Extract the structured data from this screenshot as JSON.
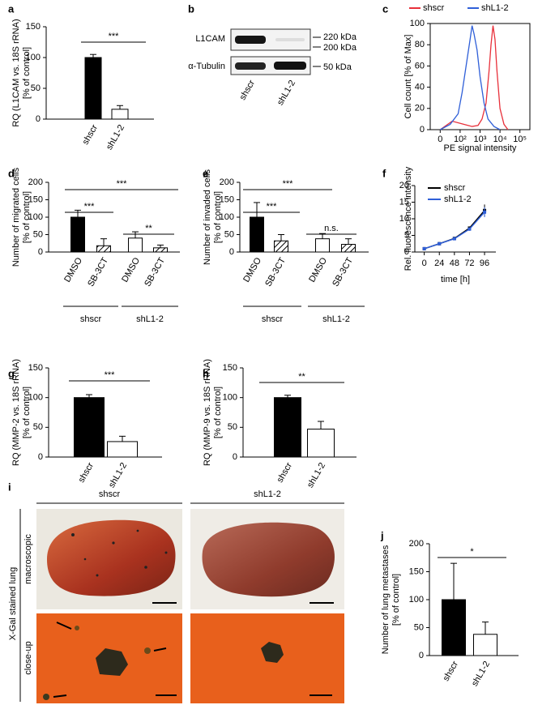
{
  "blot": {
    "label": "b",
    "bands": [
      "L1CAM",
      "α-Tubulin"
    ],
    "markers": [
      "220 kDa",
      "200 kDa",
      "50 kDa"
    ],
    "lanes": [
      "shscr",
      "shL1-2"
    ]
  },
  "photos": {
    "label": "i",
    "columns": [
      "shscr",
      "shL1-2"
    ],
    "side_label": "X-Gal stained lung",
    "rows": [
      "macroscopic",
      "close-up"
    ]
  },
  "chart_data": [
    {
      "type": "bar",
      "label": "a",
      "ylabel": [
        "RQ (L1CAM vs. 18S rRNA)",
        "[% of control]"
      ],
      "categories": [
        "shscr",
        "shL1-2"
      ],
      "values": [
        100,
        16
      ],
      "errors": [
        5,
        6
      ],
      "fills": [
        "#000000",
        "#ffffff"
      ],
      "ylim": [
        0,
        150
      ],
      "yticks": [
        0,
        50,
        100,
        150
      ],
      "annotations": [
        "***"
      ]
    },
    {
      "type": "line",
      "label": "c",
      "xlabel": "PE signal intensity",
      "ylabel": [
        "Cell count [% of Max]"
      ],
      "xlim": [
        0.5,
        5.5
      ],
      "ylim": [
        0,
        100
      ],
      "xticks": [
        {
          "value": 1,
          "label": "0"
        },
        {
          "value": 2,
          "label": "10²"
        },
        {
          "value": 3,
          "label": "10³"
        },
        {
          "value": 4,
          "label": "10⁴"
        },
        {
          "value": 5,
          "label": "10⁵"
        }
      ],
      "yticks": [
        0,
        20,
        40,
        60,
        80,
        100
      ],
      "series": [
        {
          "name": "shscr",
          "color": "#e8303a",
          "x": [
            1.0,
            1.6,
            2.2,
            2.6,
            2.9,
            3.1,
            3.3,
            3.45,
            3.55,
            3.65,
            3.75,
            3.85,
            4.0,
            4.2,
            4.4
          ],
          "values": [
            0,
            8,
            5,
            3,
            4,
            10,
            25,
            55,
            80,
            98,
            85,
            55,
            20,
            5,
            0
          ]
        },
        {
          "name": "shL1-2",
          "color": "#2f5fd8",
          "x": [
            1.0,
            1.5,
            1.9,
            2.1,
            2.3,
            2.5,
            2.6,
            2.7,
            2.85,
            3.0,
            3.2,
            3.4,
            3.7,
            4.0
          ],
          "values": [
            0,
            5,
            15,
            35,
            60,
            85,
            98,
            90,
            75,
            50,
            25,
            10,
            3,
            0
          ]
        }
      ]
    },
    {
      "type": "bar",
      "label": "d",
      "ylabel": [
        "Number of migrated cells",
        "[% of control]"
      ],
      "categories": [
        "DMSO",
        "SB-3CT",
        "DMSO",
        "SB-3CT"
      ],
      "groups": [
        "shscr",
        "shL1-2"
      ],
      "values": [
        100,
        18,
        40,
        12
      ],
      "errors": [
        20,
        20,
        18,
        8
      ],
      "fills": [
        "#000000",
        "hatch",
        "#ffffff",
        "hatch"
      ],
      "ylim": [
        0,
        200
      ],
      "yticks": [
        0,
        50,
        100,
        150,
        200
      ],
      "annotations": [
        "***",
        "***",
        "**"
      ]
    },
    {
      "type": "bar",
      "label": "e",
      "ylabel": [
        "Number of invaded cells",
        "[% of control]"
      ],
      "categories": [
        "DMSO",
        "SB-3CT",
        "DMSO",
        "SB-3CT"
      ],
      "groups": [
        "shscr",
        "shL1-2"
      ],
      "values": [
        100,
        32,
        38,
        22
      ],
      "errors": [
        42,
        18,
        15,
        16
      ],
      "fills": [
        "#000000",
        "hatch",
        "#ffffff",
        "hatch"
      ],
      "ylim": [
        0,
        200
      ],
      "yticks": [
        0,
        50,
        100,
        150,
        200
      ],
      "annotations": [
        "***",
        "***",
        "n.s."
      ]
    },
    {
      "type": "errline",
      "label": "f",
      "xlabel": "time [h]",
      "ylabel": [
        "Rel. fluorescence intensity"
      ],
      "x": [
        0,
        24,
        48,
        72,
        96
      ],
      "xlim": [
        -15,
        114
      ],
      "xticks": [
        0,
        24,
        48,
        72,
        96
      ],
      "ylim": [
        0,
        20
      ],
      "yticks": [
        0,
        5,
        10,
        15,
        20
      ],
      "series": [
        {
          "name": "shscr",
          "color": "#000000",
          "values": [
            1,
            2.5,
            4.1,
            7.2,
            12.5
          ],
          "errors": [
            0.2,
            0.2,
            0.3,
            0.5,
            1.8
          ]
        },
        {
          "name": "shL1-2",
          "color": "#2f5fd8",
          "values": [
            1,
            2.5,
            4.0,
            6.9,
            12.0
          ],
          "errors": [
            0.2,
            0.2,
            0.3,
            0.5,
            1.5
          ]
        }
      ]
    },
    {
      "type": "bar",
      "label": "g",
      "ylabel": [
        "RQ (MMP-2 vs. 18S rRNA)",
        "[% of control]"
      ],
      "categories": [
        "shscr",
        "shL1-2"
      ],
      "values": [
        100,
        26
      ],
      "errors": [
        5,
        9
      ],
      "fills": [
        "#000000",
        "#ffffff"
      ],
      "ylim": [
        0,
        150
      ],
      "yticks": [
        0,
        50,
        100,
        150
      ],
      "annotations": [
        "***"
      ]
    },
    {
      "type": "bar",
      "label": "h",
      "ylabel": [
        "RQ (MMP-9 vs. 18S rRNA)",
        "[% of control]"
      ],
      "categories": [
        "shscr",
        "shL1-2"
      ],
      "values": [
        100,
        47
      ],
      "errors": [
        4,
        13
      ],
      "fills": [
        "#000000",
        "#ffffff"
      ],
      "ylim": [
        0,
        150
      ],
      "yticks": [
        0,
        50,
        100,
        150
      ],
      "annotations": [
        "**"
      ]
    },
    {
      "type": "bar",
      "label": "j",
      "ylabel": [
        "Number of lung metastases",
        "[% of control]"
      ],
      "categories": [
        "shscr",
        "shL1-2"
      ],
      "values": [
        100,
        38
      ],
      "errors": [
        65,
        22
      ],
      "fills": [
        "#000000",
        "#ffffff"
      ],
      "ylim": [
        0,
        200
      ],
      "yticks": [
        0,
        50,
        100,
        150,
        200
      ],
      "annotations": [
        "*"
      ]
    }
  ]
}
